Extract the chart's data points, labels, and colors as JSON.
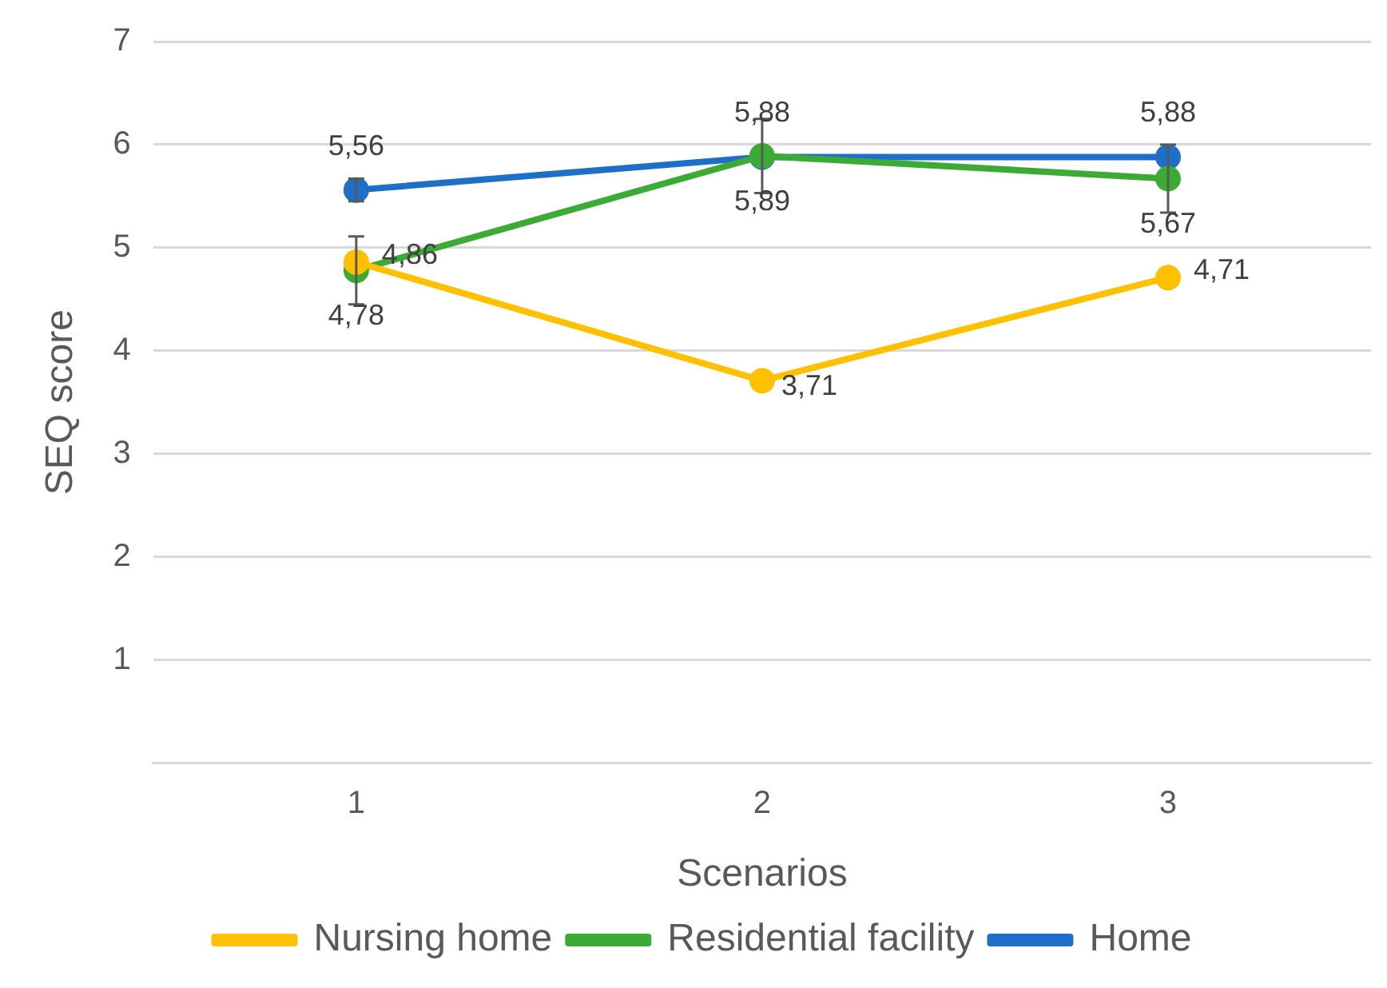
{
  "chart_data": {
    "type": "line",
    "xlabel": "Scenarios",
    "ylabel": "SEQ score",
    "categories": [
      "1",
      "2",
      "3"
    ],
    "ylim": [
      0,
      7
    ],
    "yticks": [
      1,
      2,
      3,
      4,
      5,
      6,
      7
    ],
    "grid": "y",
    "legend": "bottom",
    "marker": "circle",
    "line_style": "solid",
    "series": [
      {
        "name": "Nursing home",
        "color": "#ffc000",
        "values": [
          4.86,
          3.71,
          4.71
        ],
        "value_labels": [
          "4,86",
          "3,71",
          "4,71"
        ]
      },
      {
        "name": "Residential facility",
        "color": "#3cab35",
        "values": [
          4.78,
          5.89,
          5.67
        ],
        "value_labels": [
          "4,78",
          "5,89",
          "5,67"
        ],
        "errors": [
          0.33,
          0.36,
          0.33
        ]
      },
      {
        "name": "Home",
        "color": "#1d6fc9",
        "values": [
          5.56,
          5.88,
          5.88
        ],
        "value_labels": [
          "5,56",
          "5,88",
          "5,88"
        ],
        "errors": [
          0.11,
          null,
          null
        ]
      }
    ]
  }
}
